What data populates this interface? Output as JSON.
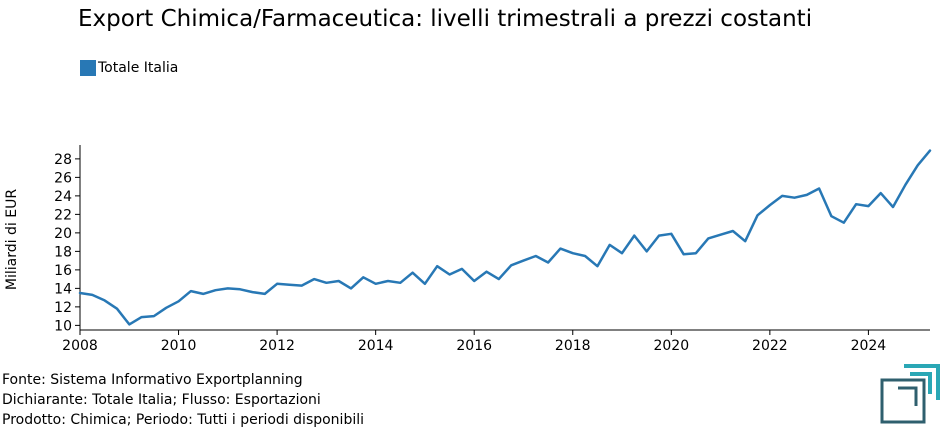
{
  "header": {
    "title": "Export Chimica/Farmaceutica: livelli trimestrali a prezzi costanti"
  },
  "footer": {
    "source": "Fonte: Sistema Informativo Exportplanning",
    "declarant": "Dichiarante: Totale Italia; Flusso: Esportazioni",
    "product": "Prodotto: Chimica; Periodo: Tutti i periodi disponibili"
  },
  "colors": {
    "series": "#2878b5",
    "logo_teal": "#2aa7b5",
    "logo_dark": "#2f5f6e"
  },
  "chart_data": {
    "type": "line",
    "title": "Export Chimica/Farmaceutica: livelli trimestrali a prezzi costanti",
    "xlabel": "",
    "ylabel": "Miliardi di EUR",
    "xlim": [
      2008,
      2025.25
    ],
    "ylim": [
      9.5,
      29.5
    ],
    "x_ticks": [
      "2008",
      "2010",
      "2012",
      "2014",
      "2016",
      "2018",
      "2020",
      "2022",
      "2024"
    ],
    "y_ticks": [
      "10",
      "12",
      "14",
      "16",
      "18",
      "20",
      "22",
      "24",
      "26",
      "28"
    ],
    "grid": false,
    "legend": "top-left",
    "series": [
      {
        "name": "Totale Italia",
        "x": [
          2008.0,
          2008.25,
          2008.5,
          2008.75,
          2009.0,
          2009.25,
          2009.5,
          2009.75,
          2010.0,
          2010.25,
          2010.5,
          2010.75,
          2011.0,
          2011.25,
          2011.5,
          2011.75,
          2012.0,
          2012.25,
          2012.5,
          2012.75,
          2013.0,
          2013.25,
          2013.5,
          2013.75,
          2014.0,
          2014.25,
          2014.5,
          2014.75,
          2015.0,
          2015.25,
          2015.5,
          2015.75,
          2016.0,
          2016.25,
          2016.5,
          2016.75,
          2017.0,
          2017.25,
          2017.5,
          2017.75,
          2018.0,
          2018.25,
          2018.5,
          2018.75,
          2019.0,
          2019.25,
          2019.5,
          2019.75,
          2020.0,
          2020.25,
          2020.5,
          2020.75,
          2021.0,
          2021.25,
          2021.5,
          2021.75,
          2022.0,
          2022.25,
          2022.5,
          2022.75,
          2023.0,
          2023.25,
          2023.5,
          2023.75,
          2024.0,
          2024.25,
          2024.5,
          2024.75,
          2025.0,
          2025.25
        ],
        "values": [
          13.5,
          13.3,
          12.7,
          11.8,
          10.1,
          10.9,
          11.0,
          11.9,
          12.6,
          13.7,
          13.4,
          13.8,
          14.0,
          13.9,
          13.6,
          13.4,
          14.5,
          14.4,
          14.3,
          15.0,
          14.6,
          14.8,
          14.0,
          15.2,
          14.5,
          14.8,
          14.6,
          15.7,
          14.5,
          16.4,
          15.5,
          16.1,
          14.8,
          15.8,
          15.0,
          16.5,
          17.0,
          17.5,
          16.8,
          18.3,
          17.8,
          17.5,
          16.4,
          18.7,
          17.8,
          19.7,
          18.0,
          19.7,
          19.9,
          17.7,
          17.8,
          19.4,
          19.8,
          20.2,
          19.1,
          21.9,
          23.0,
          24.0,
          23.8,
          24.1,
          24.8,
          21.8,
          21.1,
          23.1,
          22.9,
          24.3,
          22.8,
          25.2,
          27.3,
          28.9
        ]
      }
    ]
  }
}
